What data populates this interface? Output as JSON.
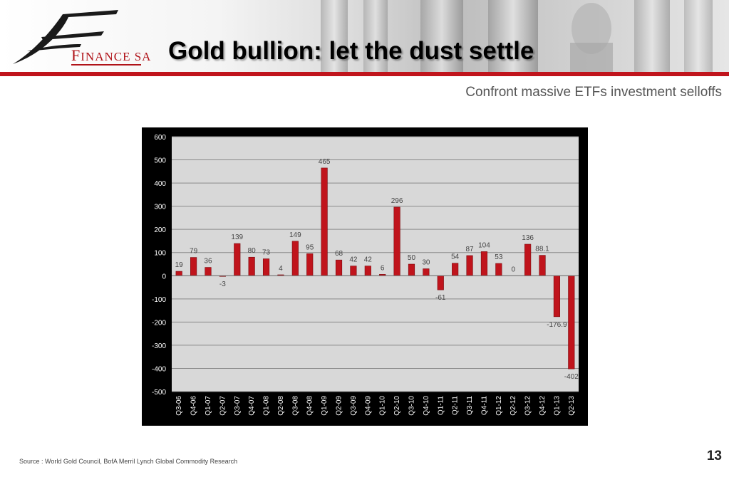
{
  "header": {
    "logo_text_first": "F",
    "logo_text_rest": "INANCE SA",
    "title": "Gold bullion: let the dust settle",
    "subtitle": "Confront massive ETFs investment selloffs"
  },
  "footer": {
    "source": "Source :  World Gold Council, BofA Merril Lynch Global Commodity Research",
    "page_number": "13"
  },
  "colors": {
    "brand_red": "#c0141c",
    "bar_fill": "#c0141c",
    "plot_bg": "#d8d8d8"
  },
  "chart_data": {
    "type": "bar",
    "title": "",
    "xlabel": "",
    "ylabel": "",
    "ylim": [
      -500,
      600
    ],
    "yticks": [
      600,
      500,
      400,
      300,
      200,
      100,
      0,
      -100,
      -200,
      -300,
      -400,
      -500
    ],
    "grid": true,
    "legend": "none",
    "categories": [
      "Q3-06",
      "Q4-06",
      "Q1-07",
      "Q2-07",
      "Q3-07",
      "Q4-07",
      "Q1-08",
      "Q2-08",
      "Q3-08",
      "Q4-08",
      "Q1-09",
      "Q2-09",
      "Q3-09",
      "Q4-09",
      "Q1-10",
      "Q2-10",
      "Q3-10",
      "Q4-10",
      "Q1-11",
      "Q2-11",
      "Q3-11",
      "Q4-11",
      "Q1-12",
      "Q2-12",
      "Q3-12",
      "Q4-12",
      "Q1-13",
      "Q2-13"
    ],
    "values": [
      19,
      79,
      36,
      -3,
      139,
      80,
      73,
      4,
      149,
      95,
      465,
      68,
      42,
      42,
      6,
      296,
      50,
      30,
      -61,
      54,
      87,
      104,
      53,
      0,
      136,
      88.1,
      -176.9,
      -402
    ],
    "data_labels": [
      "19",
      "79",
      "36",
      "-3",
      "139",
      "80",
      "73",
      "4",
      "149",
      "95",
      "465",
      "68",
      "42",
      "42",
      "6",
      "296",
      "50",
      "30",
      "-61",
      "54",
      "87",
      "104",
      "53",
      "0",
      "136",
      "88.1",
      "-176.9",
      "-402"
    ]
  }
}
